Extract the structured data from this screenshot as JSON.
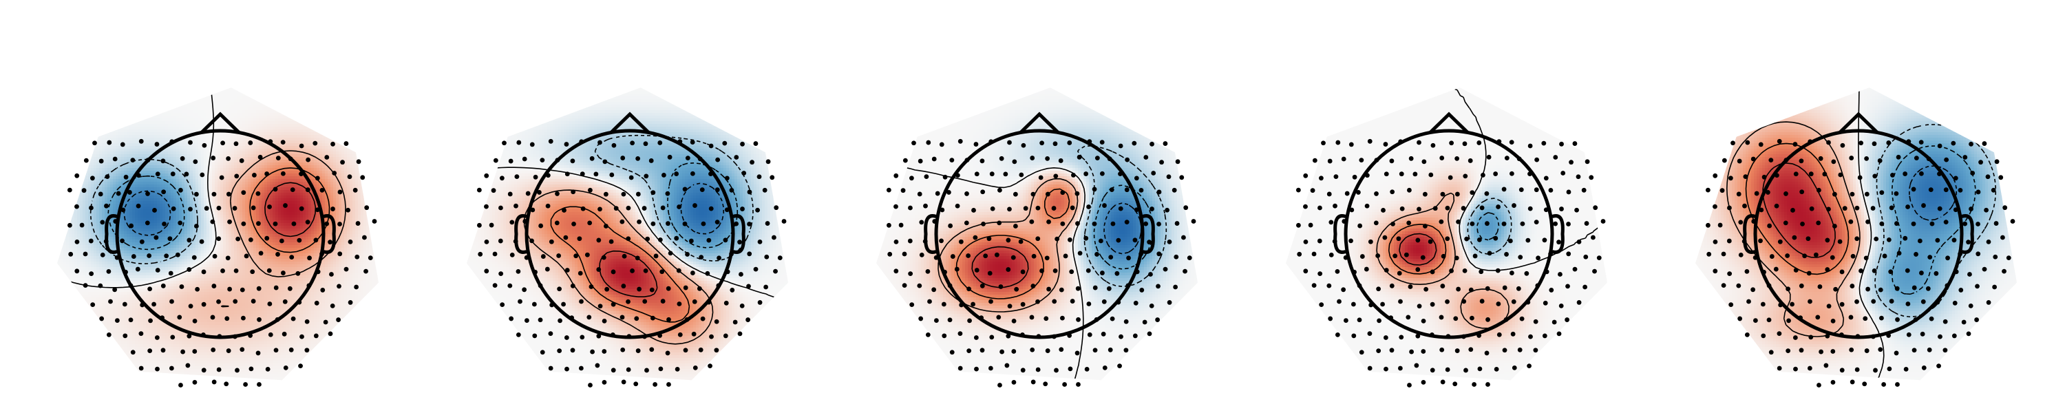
{
  "chart_data": {
    "type": "heatmap",
    "kind": "scalp-topomap",
    "colormap": "RdBu_r",
    "colors": {
      "positive": "#b2182b",
      "negative": "#2166ac",
      "zero": "#f7f7f7"
    },
    "contours": true,
    "sensors_shown": true,
    "panels": [
      {
        "sources": [
          [
            -0.7,
            0.2,
            -0.95,
            0.34,
            0.32
          ],
          [
            0.68,
            0.24,
            1.0,
            0.32,
            0.34
          ],
          [
            -0.05,
            0.35,
            0.15,
            0.22,
            0.22
          ],
          [
            0.0,
            -0.7,
            0.25,
            0.6,
            0.3
          ]
        ]
      },
      {
        "sources": [
          [
            -0.55,
            0.12,
            0.62,
            0.36,
            0.26
          ],
          [
            -0.05,
            -0.38,
            0.95,
            0.3,
            0.24
          ],
          [
            0.7,
            0.22,
            -1.0,
            0.3,
            0.34
          ],
          [
            0.45,
            -0.72,
            0.55,
            0.3,
            0.28
          ],
          [
            0.0,
            0.78,
            -0.35,
            0.5,
            0.22
          ]
        ]
      },
      {
        "sources": [
          [
            -0.38,
            -0.32,
            0.98,
            0.36,
            0.26
          ],
          [
            0.8,
            0.05,
            -0.95,
            0.26,
            0.34
          ],
          [
            0.2,
            0.32,
            0.7,
            0.18,
            0.2
          ],
          [
            0.35,
            0.78,
            -0.25,
            0.4,
            0.22
          ]
        ]
      },
      {
        "sources": [
          [
            -0.3,
            -0.15,
            1.0,
            0.24,
            0.2
          ],
          [
            0.35,
            0.1,
            -0.7,
            0.18,
            0.22
          ],
          [
            0.35,
            -0.72,
            0.4,
            0.24,
            0.2
          ],
          [
            0.1,
            0.32,
            0.35,
            0.2,
            0.18
          ]
        ]
      },
      {
        "sources": [
          [
            -0.7,
            0.45,
            0.98,
            0.36,
            0.4
          ],
          [
            0.72,
            0.42,
            -1.0,
            0.38,
            0.4
          ],
          [
            -0.35,
            -0.1,
            0.75,
            0.32,
            0.3
          ],
          [
            0.45,
            -0.45,
            -0.6,
            0.3,
            0.3
          ],
          [
            -0.4,
            -0.85,
            0.35,
            0.4,
            0.2
          ]
        ]
      }
    ]
  }
}
